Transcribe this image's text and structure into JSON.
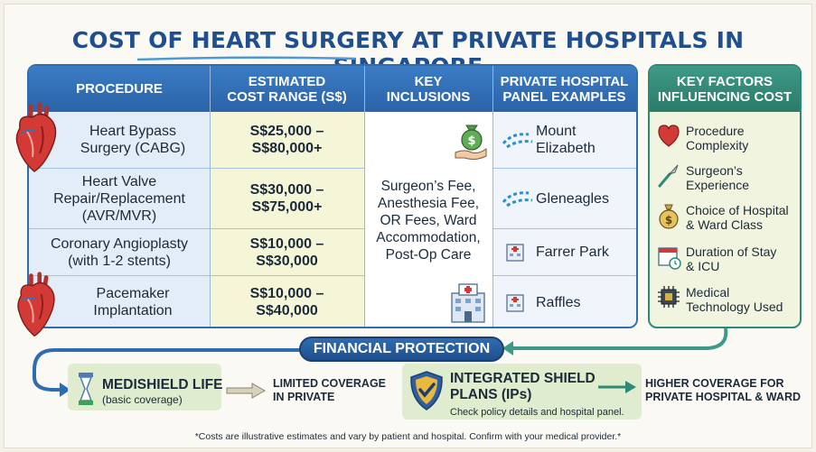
{
  "title": "COST OF HEART SURGERY AT PRIVATE HOSPITALS IN SINGAPORE",
  "table": {
    "headers": [
      "PROCEDURE",
      "ESTIMATED\nCOST RANGE (S$)",
      "KEY\nINCLUSIONS",
      "PRIVATE HOSPITAL\nPANEL EXAMPLES"
    ],
    "rows": [
      {
        "procedure": "Heart Bypass\nSurgery (CABG)",
        "cost": "S$25,000 –\nS$80,000+"
      },
      {
        "procedure": "Heart Valve\nRepair/Replacement\n(AVR/MVR)",
        "cost": "S$30,000 –\nS$75,000+"
      },
      {
        "procedure": "Coronary Angioplasty\n(with 1-2 stents)",
        "cost": "S$10,000 –\nS$30,000"
      },
      {
        "procedure": "Pacemaker\nImplantation",
        "cost": "S$10,000 –\nS$40,000"
      }
    ],
    "inclusions": "Surgeon’s Fee,\nAnesthesia Fee,\nOR Fees, Ward\nAccommodation,\nPost-Op Care",
    "hospitals": [
      "Mount\nElizabeth",
      "Gleneagles",
      "Farrer Park",
      "Raffles"
    ]
  },
  "factors": {
    "header": "KEY FACTORS\nINFLUENCING COST",
    "items": [
      {
        "label": "Procedure\nComplexity",
        "icon": "heart-icon"
      },
      {
        "label": "Surgeon’s\nExperience",
        "icon": "scalpel-icon"
      },
      {
        "label": "Choice of Hospital\n& Ward Class",
        "icon": "money-bag-icon"
      },
      {
        "label": "Duration of Stay\n& ICU",
        "icon": "calendar-icon"
      },
      {
        "label": "Medical\nTechnology Used",
        "icon": "chip-icon"
      }
    ]
  },
  "protection": {
    "banner": "FINANCIAL PROTECTION",
    "medishield_title": "MEDISHIELD LIFE",
    "medishield_sub": "(basic coverage)",
    "medishield_note": "LIMITED COVERAGE\nIN PRIVATE",
    "ip_title": "INTEGRATED SHIELD\nPLANS (IPs)",
    "ip_sub": "Check policy details and hospital panel.",
    "ip_note": "HIGHER COVERAGE FOR\nPRIVATE HOSPITAL & WARD"
  },
  "footnote": "*Costs are illustrative estimates and vary by patient and hospital. Confirm with your medical provider.*",
  "colors": {
    "primary_blue": "#2f6db0",
    "teal": "#2e8a78",
    "cost_yellow": "#f5f6d8",
    "green_box": "#dfeccd",
    "heart_red": "#d33a35"
  }
}
